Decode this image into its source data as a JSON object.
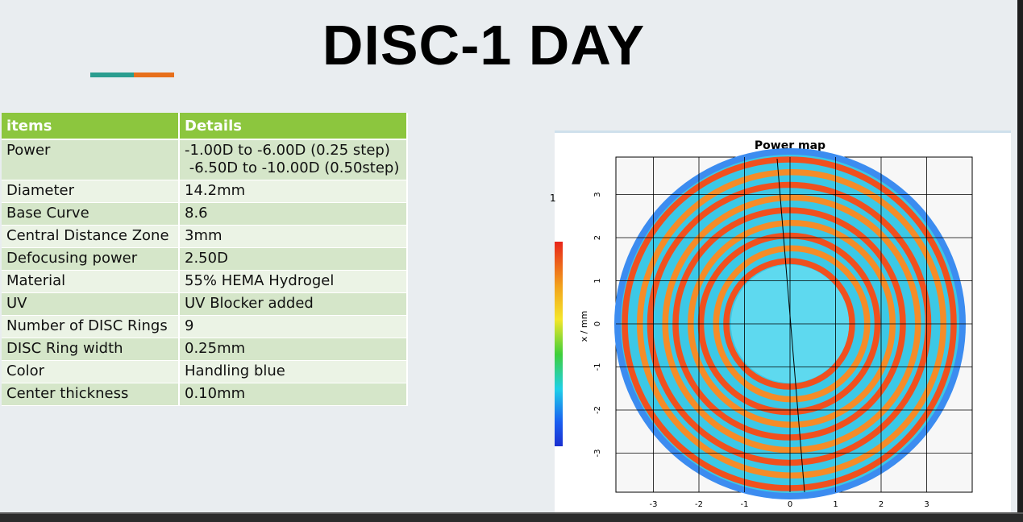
{
  "title": "DISC-1 DAY",
  "table": {
    "headers": [
      "items",
      "Details"
    ],
    "rows": [
      {
        "item": "Power",
        "details": [
          "-1.00D  to -6.00D  (0.25 step)",
          " -6.50D to -10.00D (0.50step)"
        ]
      },
      {
        "item": "Diameter",
        "details": [
          "14.2mm"
        ]
      },
      {
        "item": "Base Curve",
        "details": [
          "8.6"
        ]
      },
      {
        "item": "Central Distance Zone",
        "details": [
          "3mm"
        ]
      },
      {
        "item": "Defocusing power",
        "details": [
          "2.50D"
        ]
      },
      {
        "item": "Material",
        "details": [
          "55% HEMA Hydrogel"
        ]
      },
      {
        "item": "UV",
        "details": [
          "UV Blocker added"
        ]
      },
      {
        "item": "Number of DISC Rings",
        "details": [
          "9"
        ]
      },
      {
        "item": "DISC Ring width",
        "details": [
          "0.25mm"
        ]
      },
      {
        "item": "Color",
        "details": [
          "Handling blue"
        ]
      },
      {
        "item": "Center thickness",
        "details": [
          "0.10mm"
        ]
      }
    ]
  },
  "power_map": {
    "title": "Power map",
    "ylabel": "x / mm",
    "stray_label": "1",
    "xticks": [
      "-3",
      "-2",
      "-1",
      "0",
      "1",
      "2",
      "3"
    ],
    "yticks": [
      "3",
      "2",
      "1",
      "0",
      "-1",
      "-2",
      "-3"
    ],
    "rings": 9,
    "colors": {
      "ring": "#f0501e",
      "ring_alt": "#f58c28",
      "background_zone": "#3cc8e6",
      "center": "#64dcf0",
      "edge": "#3c8cf0"
    }
  }
}
